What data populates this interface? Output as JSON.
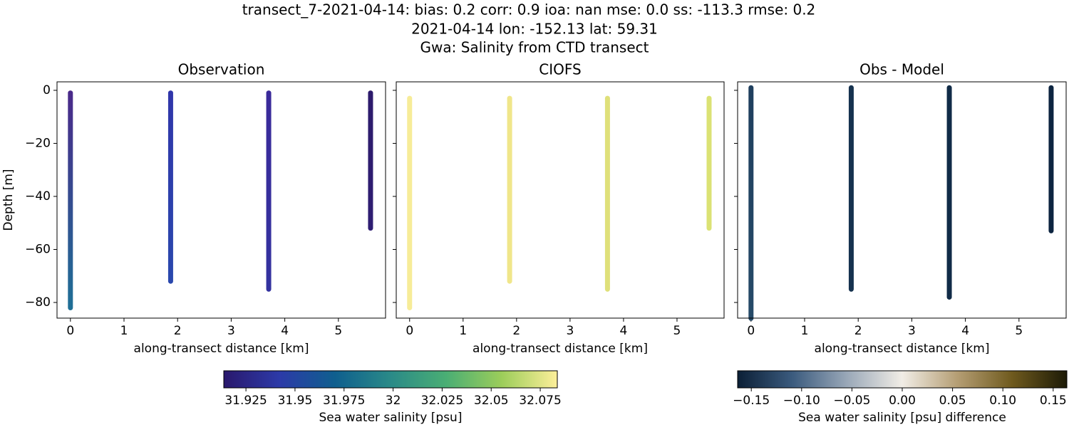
{
  "suptitle": [
    "transect_7-2021-04-14: bias: 0.2  corr: 0.9  ioa: nan  mse: 0.0  ss: -113.3  rmse: 0.2",
    "2021-04-14 lon: -152.13 lat: 59.31",
    "Gwa: Salinity from CTD transect"
  ],
  "chart_data": [
    {
      "type": "scatter",
      "title": "Observation",
      "xlabel": "along-transect distance [km]",
      "ylabel": "Depth [m]",
      "xlim": [
        -0.25,
        5.88
      ],
      "ylim": [
        -85.9,
        3.2
      ],
      "xticks": [
        0,
        1,
        2,
        3,
        4,
        5
      ],
      "yticks": [
        0,
        {
          "value": -20,
          "label": "−20"
        },
        {
          "value": -40,
          "label": "−40"
        },
        {
          "value": -60,
          "label": "−60"
        },
        {
          "value": -80,
          "label": "−80"
        }
      ],
      "yticklabels": true,
      "series": [
        {
          "x": [
            0,
            0
          ],
          "y": [
            -1,
            -82
          ],
          "colors": [
            "#4a2a8a",
            "#1f6f96"
          ]
        },
        {
          "x": [
            1.87,
            1.87
          ],
          "y": [
            -1,
            -72
          ],
          "colors": [
            "#3036aa",
            "#2a48ad"
          ]
        },
        {
          "x": [
            3.7,
            3.7
          ],
          "y": [
            -1,
            -75
          ],
          "colors": [
            "#3a2a9a",
            "#33329f"
          ]
        },
        {
          "x": [
            5.6,
            5.6
          ],
          "y": [
            -1,
            -52
          ],
          "colors": [
            "#2d1b6c",
            "#2e1d72"
          ]
        }
      ],
      "colorbar": {
        "label": "Sea water salinity [psu]",
        "lim": [
          31.9137,
          32.0837
        ],
        "ticks": [
          31.925,
          31.95,
          31.975,
          32.0,
          32.025,
          32.05,
          32.075
        ],
        "colormap": [
          "#2a186c",
          "#2c3aa8",
          "#0f5f8e",
          "#2a8a88",
          "#4aae74",
          "#9ccd5a",
          "#fdef9a"
        ]
      }
    },
    {
      "type": "scatter",
      "title": "CIOFS",
      "xlabel": "along-transect distance [km]",
      "xlim": [
        -0.25,
        5.88
      ],
      "ylim": [
        -85.9,
        3.2
      ],
      "xticks": [
        0,
        1,
        2,
        3,
        4,
        5
      ],
      "yticks": [
        0,
        -20,
        -40,
        -60,
        -80
      ],
      "yticklabels": false,
      "series": [
        {
          "x": [
            0,
            0
          ],
          "y": [
            -3,
            -82
          ],
          "colors": [
            "#f7ec98",
            "#f7ec98"
          ]
        },
        {
          "x": [
            1.87,
            1.87
          ],
          "y": [
            -3,
            -72
          ],
          "colors": [
            "#f0e68a",
            "#f0e68a"
          ]
        },
        {
          "x": [
            3.7,
            3.7
          ],
          "y": [
            -3,
            -75
          ],
          "colors": [
            "#dfe07a",
            "#dfe07a"
          ]
        },
        {
          "x": [
            5.6,
            5.6
          ],
          "y": [
            -3,
            -52
          ],
          "colors": [
            "#dbe274",
            "#dbe274"
          ]
        }
      ]
    },
    {
      "type": "scatter",
      "title": "Obs - Model",
      "xlabel": "along-transect distance [km]",
      "xlim": [
        -0.25,
        5.88
      ],
      "ylim": [
        -85.9,
        3.2
      ],
      "xticks": [
        0,
        1,
        2,
        3,
        4,
        5
      ],
      "yticks": [
        0,
        -20,
        -40,
        -60,
        -80
      ],
      "yticklabels": false,
      "series": [
        {
          "x": [
            0,
            0
          ],
          "y": [
            1,
            -86
          ],
          "colors": [
            "#1f3f5e",
            "#264a68"
          ]
        },
        {
          "x": [
            1.87,
            1.87
          ],
          "y": [
            1,
            -75
          ],
          "colors": [
            "#16324f",
            "#16324f"
          ]
        },
        {
          "x": [
            3.7,
            3.7
          ],
          "y": [
            1,
            -78
          ],
          "colors": [
            "#112b47",
            "#112b47"
          ]
        },
        {
          "x": [
            5.6,
            5.6
          ],
          "y": [
            1,
            -53
          ],
          "colors": [
            "#0c2440",
            "#0c2440"
          ]
        }
      ],
      "colorbar": {
        "label": "Sea water salinity [psu] difference",
        "lim": [
          -0.1636,
          0.1636
        ],
        "ticks": [
          {
            "value": -0.15,
            "label": "−0.15"
          },
          {
            "value": -0.1,
            "label": "−0.10"
          },
          {
            "value": -0.05,
            "label": "−0.05"
          },
          {
            "value": 0,
            "label": "0.00"
          },
          {
            "value": 0.05,
            "label": "0.05"
          },
          {
            "value": 0.1,
            "label": "0.10"
          },
          0.15
        ],
        "colormap": [
          "#0b1f36",
          "#3b5b7e",
          "#9aa8b8",
          "#f1ede6",
          "#b59e74",
          "#6f5a1e",
          "#1c1a06"
        ]
      }
    }
  ]
}
